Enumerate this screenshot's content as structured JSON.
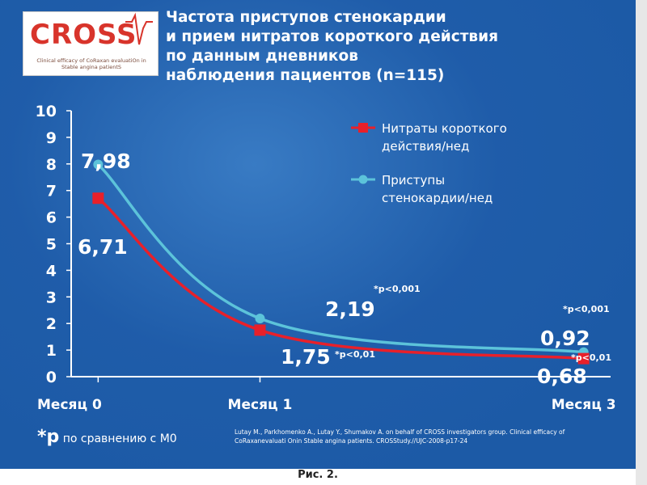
{
  "logo": {
    "text": "CROSS",
    "subtitle": "Clinical efficacy of CoRaxan evaluatiOn in Stable angina patientS"
  },
  "title": "Частота приступов стенокардии\nи прием нитратов короткого действия\nпо данным дневников\nнаблюдения пациентов  (n=115)",
  "chart_data": {
    "type": "line",
    "categories": [
      "Месяц 0",
      "Месяц 1",
      "Месяц 3"
    ],
    "x_positions": [
      0,
      1,
      3
    ],
    "ylim": [
      0,
      10
    ],
    "yticks": [
      "0",
      "1",
      "2",
      "3",
      "4",
      "5",
      "6",
      "7",
      "8",
      "9",
      "10"
    ],
    "grid": false,
    "legend_position": "top-right",
    "series": [
      {
        "name": "Нитраты короткого действия/нед",
        "color": "#e8202a",
        "marker": "square",
        "values": [
          6.71,
          1.75,
          0.68
        ],
        "labels": [
          "6,71",
          "1,75",
          "0,68"
        ]
      },
      {
        "name": "Приступы стенокардии/нед",
        "color": "#5cc3da",
        "marker": "circle",
        "values": [
          7.98,
          2.19,
          0.92
        ],
        "labels": [
          "7,98",
          "2,19",
          "0,92"
        ]
      }
    ],
    "annotations": [
      "*p<0,001",
      "*p<0,01",
      "*p<0,001",
      "*p<0,01"
    ]
  },
  "legend": {
    "nitrates_line1": "Нитраты короткого",
    "nitrates_line2": "действия/нед",
    "attacks_line1": "Приступы",
    "attacks_line2": "стенокардии/нед"
  },
  "footnote": {
    "star_p": "*p",
    "text": "по сравнению с М0"
  },
  "reference": "Lutay M., Parkhomenko A., Lutay Y., Shumakov A. on behalf of CROSS investigators group. Clinical efficacy of CoRaxanevaluati Onin Stable angina patients. CROSStudy.//UJC-2008-p17-24",
  "caption": "Рис. 2."
}
